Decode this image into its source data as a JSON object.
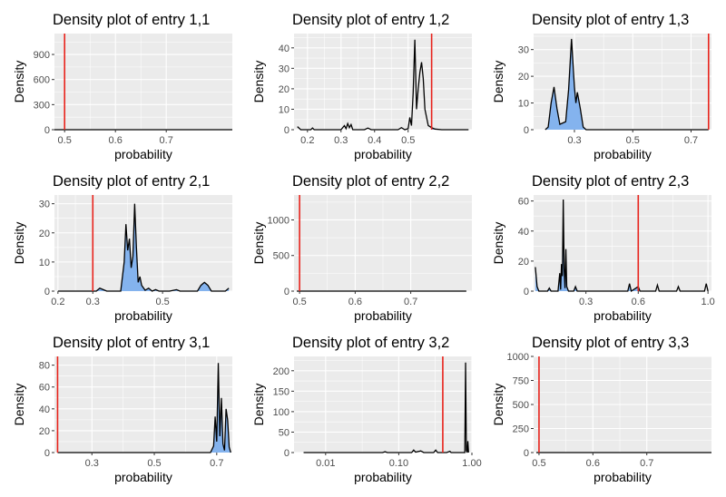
{
  "chart_data": [
    {
      "type": "area",
      "title": "Density plot of entry 1,1",
      "xlabel": "probability",
      "ylabel": "Density",
      "xlim": [
        0.48,
        0.83
      ],
      "ylim": [
        0,
        1150
      ],
      "x_scale": "linear",
      "xticks": [
        0.5,
        0.6,
        0.7
      ],
      "xtick_labels": [
        "0.5",
        "0.6",
        "0.7"
      ],
      "yticks": [
        0,
        300,
        600,
        900
      ],
      "ytick_labels": [
        "0",
        "300",
        "600",
        "900"
      ],
      "vline": 0.5,
      "fill_range": null,
      "curve": [
        [
          0.48,
          0
        ],
        [
          0.499,
          0
        ],
        [
          0.5,
          0
        ],
        [
          0.501,
          0
        ],
        [
          0.83,
          0
        ]
      ]
    },
    {
      "type": "area",
      "title": "Density plot of entry 1,2",
      "xlabel": "probability",
      "ylabel": "Density",
      "xlim": [
        0.16,
        0.69
      ],
      "ylim": [
        0,
        47
      ],
      "x_scale": "linear",
      "xticks": [
        0.2,
        0.3,
        0.4,
        0.5
      ],
      "xtick_labels": [
        "0.2",
        "0.3",
        "0.4",
        "0.5"
      ],
      "yticks": [
        0,
        10,
        20,
        30,
        40
      ],
      "ytick_labels": [
        "0",
        "10",
        "20",
        "30",
        "40"
      ],
      "vline": 0.57,
      "fill_range": [
        0.57,
        0.69
      ],
      "curve": [
        [
          0.17,
          1.5
        ],
        [
          0.18,
          0
        ],
        [
          0.21,
          0
        ],
        [
          0.215,
          0.8
        ],
        [
          0.22,
          0
        ],
        [
          0.3,
          0
        ],
        [
          0.31,
          2
        ],
        [
          0.315,
          0.5
        ],
        [
          0.32,
          3
        ],
        [
          0.325,
          1
        ],
        [
          0.33,
          2.5
        ],
        [
          0.335,
          0
        ],
        [
          0.37,
          0
        ],
        [
          0.38,
          0.8
        ],
        [
          0.39,
          0
        ],
        [
          0.47,
          0
        ],
        [
          0.48,
          1
        ],
        [
          0.49,
          0
        ],
        [
          0.5,
          0.5
        ],
        [
          0.505,
          6
        ],
        [
          0.51,
          2
        ],
        [
          0.515,
          18
        ],
        [
          0.52,
          44
        ],
        [
          0.525,
          10
        ],
        [
          0.53,
          20
        ],
        [
          0.535,
          28
        ],
        [
          0.54,
          33
        ],
        [
          0.545,
          25
        ],
        [
          0.55,
          10
        ],
        [
          0.56,
          2
        ],
        [
          0.57,
          1
        ],
        [
          0.58,
          0.3
        ],
        [
          0.6,
          0
        ],
        [
          0.68,
          0
        ]
      ]
    },
    {
      "type": "area",
      "title": "Density plot of entry 1,3",
      "xlabel": "probability",
      "ylabel": "Density",
      "xlim": [
        0.16,
        0.77
      ],
      "ylim": [
        0,
        36
      ],
      "x_scale": "linear",
      "xticks": [
        0.3,
        0.5,
        0.7
      ],
      "xtick_labels": [
        "0.3",
        "0.5",
        "0.7"
      ],
      "yticks": [
        0,
        10,
        20,
        30
      ],
      "ytick_labels": [
        "0",
        "10",
        "20",
        "30"
      ],
      "vline": 0.76,
      "fill_range": [
        0.16,
        0.76
      ],
      "curve": [
        [
          0.2,
          0
        ],
        [
          0.21,
          1
        ],
        [
          0.22,
          10
        ],
        [
          0.23,
          16
        ],
        [
          0.24,
          8
        ],
        [
          0.25,
          2
        ],
        [
          0.26,
          2.5
        ],
        [
          0.27,
          3
        ],
        [
          0.28,
          15
        ],
        [
          0.29,
          34
        ],
        [
          0.3,
          16
        ],
        [
          0.305,
          10
        ],
        [
          0.31,
          14
        ],
        [
          0.32,
          8
        ],
        [
          0.33,
          1
        ],
        [
          0.34,
          0
        ],
        [
          0.76,
          0
        ]
      ]
    },
    {
      "type": "area",
      "title": "Density plot of entry 2,1",
      "xlabel": "probability",
      "ylabel": "Density",
      "xlim": [
        0.19,
        0.7
      ],
      "ylim": [
        0,
        33
      ],
      "x_scale": "linear",
      "xticks": [
        0.2,
        0.3,
        0.5
      ],
      "xtick_labels": [
        "0.2",
        "0.3",
        "0.5"
      ],
      "yticks": [
        0,
        10,
        20,
        30
      ],
      "ytick_labels": [
        "0",
        "10",
        "20",
        "30"
      ],
      "vline": 0.3,
      "fill_range": [
        0.3,
        0.7
      ],
      "curve": [
        [
          0.2,
          0
        ],
        [
          0.31,
          0
        ],
        [
          0.32,
          1
        ],
        [
          0.33,
          0.5
        ],
        [
          0.34,
          0
        ],
        [
          0.38,
          0
        ],
        [
          0.39,
          10
        ],
        [
          0.395,
          23
        ],
        [
          0.4,
          14
        ],
        [
          0.405,
          18
        ],
        [
          0.41,
          8
        ],
        [
          0.415,
          12
        ],
        [
          0.42,
          30
        ],
        [
          0.425,
          15
        ],
        [
          0.43,
          3
        ],
        [
          0.435,
          5
        ],
        [
          0.44,
          2
        ],
        [
          0.45,
          0.3
        ],
        [
          0.46,
          1
        ],
        [
          0.47,
          0
        ],
        [
          0.48,
          0.5
        ],
        [
          0.49,
          0
        ],
        [
          0.52,
          0
        ],
        [
          0.54,
          0.5
        ],
        [
          0.55,
          0
        ],
        [
          0.6,
          0
        ],
        [
          0.61,
          2
        ],
        [
          0.62,
          3
        ],
        [
          0.63,
          2
        ],
        [
          0.64,
          0
        ],
        [
          0.68,
          0
        ],
        [
          0.69,
          1
        ]
      ]
    },
    {
      "type": "area",
      "title": "Density plot of entry 2,2",
      "xlabel": "probability",
      "ylabel": "Density",
      "xlim": [
        0.49,
        0.81
      ],
      "ylim": [
        0,
        1350
      ],
      "x_scale": "linear",
      "xticks": [
        0.5,
        0.6,
        0.7
      ],
      "xtick_labels": [
        "0.5",
        "0.6",
        "0.7"
      ],
      "yticks": [
        0,
        500,
        1000
      ],
      "ytick_labels": [
        "0",
        "500",
        "1000"
      ],
      "vline": 0.5,
      "fill_range": null,
      "curve": [
        [
          0.495,
          0
        ],
        [
          0.4995,
          0
        ],
        [
          0.5,
          0
        ],
        [
          0.5005,
          0
        ],
        [
          0.8,
          0
        ]
      ]
    },
    {
      "type": "area",
      "title": "Density plot of entry 2,3",
      "xlabel": "probability",
      "ylabel": "Density",
      "xlim": [
        0.0,
        1.02
      ],
      "ylim": [
        0,
        64
      ],
      "x_scale": "linear",
      "xticks": [
        0.3,
        0.6,
        1.0
      ],
      "xtick_labels": [
        "0.3",
        "0.6",
        "1.0"
      ],
      "yticks": [
        0,
        20,
        40,
        60
      ],
      "ytick_labels": [
        "0",
        "20",
        "40",
        "60"
      ],
      "vline": 0.6,
      "fill_range": [
        0.0,
        0.6
      ],
      "curve": [
        [
          0.01,
          16
        ],
        [
          0.02,
          3
        ],
        [
          0.03,
          0
        ],
        [
          0.08,
          0
        ],
        [
          0.09,
          2
        ],
        [
          0.1,
          0
        ],
        [
          0.14,
          0
        ],
        [
          0.15,
          12
        ],
        [
          0.155,
          1
        ],
        [
          0.16,
          18
        ],
        [
          0.165,
          10
        ],
        [
          0.17,
          61
        ],
        [
          0.175,
          15
        ],
        [
          0.18,
          2
        ],
        [
          0.185,
          28
        ],
        [
          0.19,
          3
        ],
        [
          0.2,
          0
        ],
        [
          0.23,
          0
        ],
        [
          0.24,
          3
        ],
        [
          0.25,
          0
        ],
        [
          0.54,
          0
        ],
        [
          0.55,
          5
        ],
        [
          0.56,
          0
        ],
        [
          0.6,
          3
        ],
        [
          0.61,
          0
        ],
        [
          0.7,
          0
        ],
        [
          0.71,
          4
        ],
        [
          0.72,
          0
        ],
        [
          0.82,
          0
        ],
        [
          0.83,
          3
        ],
        [
          0.84,
          0
        ],
        [
          0.98,
          0
        ],
        [
          0.99,
          5
        ],
        [
          1.0,
          0
        ]
      ]
    },
    {
      "type": "area",
      "title": "Density plot of entry 3,1",
      "xlabel": "probability",
      "ylabel": "Density",
      "xlim": [
        0.18,
        0.75
      ],
      "ylim": [
        0,
        88
      ],
      "x_scale": "linear",
      "xticks": [
        0.3,
        0.5,
        0.7
      ],
      "xtick_labels": [
        "0.3",
        "0.5",
        "0.7"
      ],
      "yticks": [
        0,
        20,
        40,
        60,
        80
      ],
      "ytick_labels": [
        "0",
        "20",
        "40",
        "60",
        "80"
      ],
      "vline": 0.19,
      "fill_range": [
        0.19,
        0.75
      ],
      "curve": [
        [
          0.19,
          0
        ],
        [
          0.68,
          0
        ],
        [
          0.69,
          6
        ],
        [
          0.695,
          33
        ],
        [
          0.7,
          10
        ],
        [
          0.705,
          82
        ],
        [
          0.71,
          15
        ],
        [
          0.715,
          50
        ],
        [
          0.72,
          8
        ],
        [
          0.725,
          2
        ],
        [
          0.73,
          40
        ],
        [
          0.735,
          30
        ],
        [
          0.74,
          5
        ],
        [
          0.745,
          0
        ]
      ]
    },
    {
      "type": "area",
      "title": "Density plot of entry 3,2",
      "xlabel": "probability",
      "ylabel": "Density",
      "xlim": [
        0.0037,
        1.0
      ],
      "ylim": [
        0,
        235
      ],
      "x_scale": "log",
      "xticks": [
        0.01,
        0.1,
        1.0
      ],
      "xtick_labels": [
        "0.01",
        "0.10",
        "1.00"
      ],
      "yticks": [
        0,
        50,
        100,
        150,
        200
      ],
      "ytick_labels": [
        "0",
        "50",
        "100",
        "150",
        "200"
      ],
      "vline": 0.4,
      "fill_range": null,
      "curve": [
        [
          0.005,
          0
        ],
        [
          0.06,
          0
        ],
        [
          0.065,
          2
        ],
        [
          0.07,
          0
        ],
        [
          0.15,
          0
        ],
        [
          0.16,
          6
        ],
        [
          0.17,
          1
        ],
        [
          0.2,
          4
        ],
        [
          0.22,
          0
        ],
        [
          0.3,
          0
        ],
        [
          0.32,
          6
        ],
        [
          0.34,
          0
        ],
        [
          0.45,
          0
        ],
        [
          0.5,
          3
        ],
        [
          0.52,
          0
        ],
        [
          0.8,
          0
        ],
        [
          0.82,
          220
        ],
        [
          0.84,
          5
        ],
        [
          0.86,
          0
        ],
        [
          0.88,
          28
        ],
        [
          0.9,
          0
        ]
      ]
    },
    {
      "type": "area",
      "title": "Density plot of entry 3,3",
      "xlabel": "probability",
      "ylabel": "Density",
      "xlim": [
        0.49,
        0.82
      ],
      "ylim": [
        0,
        1000
      ],
      "x_scale": "linear",
      "xticks": [
        0.5,
        0.6,
        0.7
      ],
      "xtick_labels": [
        "0.5",
        "0.6",
        "0.7"
      ],
      "yticks": [
        0,
        250,
        500,
        750,
        1000
      ],
      "ytick_labels": [
        "0",
        "250",
        "500",
        "750",
        "1000"
      ],
      "vline": 0.5,
      "fill_range": null,
      "curve": [
        [
          0.495,
          0
        ],
        [
          0.4995,
          0
        ],
        [
          0.5,
          0
        ],
        [
          0.5005,
          0
        ],
        [
          0.82,
          0
        ]
      ]
    }
  ],
  "colors": {
    "panel_bg": "#ebebeb",
    "grid": "#ffffff",
    "density_fill": "#84b3ee",
    "density_line": "#000000",
    "vline": "#e8231c"
  }
}
